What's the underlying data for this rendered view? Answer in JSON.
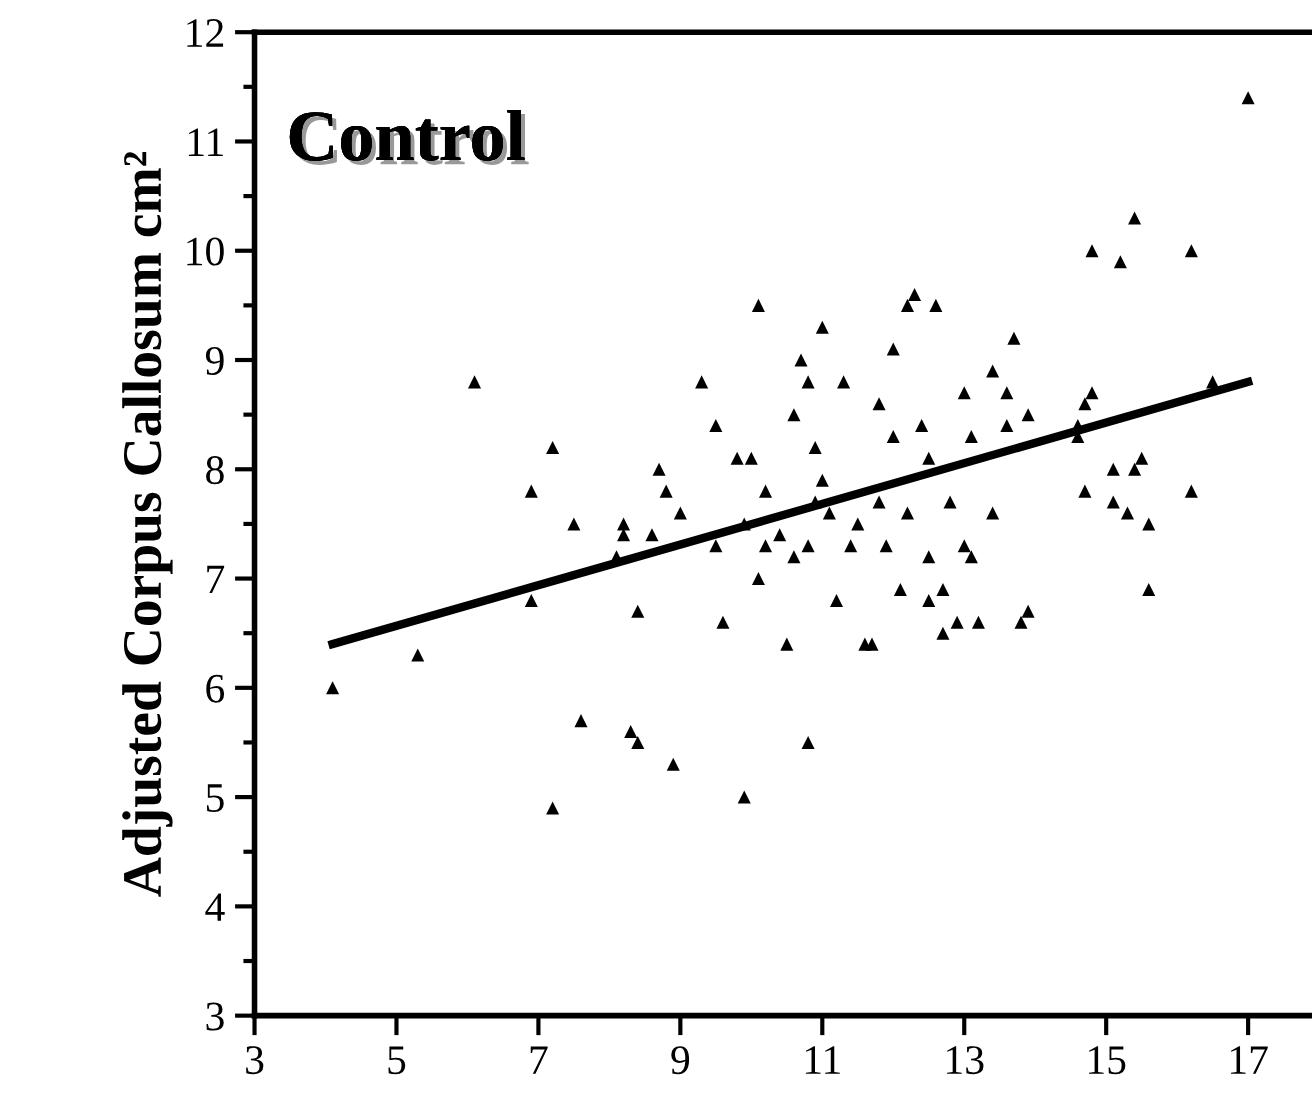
{
  "chart_data": {
    "type": "scatter",
    "ylabel": "Adjusted Corpus Callosum cm²",
    "annotations": [
      "Control"
    ],
    "xlim": [
      3,
      17.9
    ],
    "ylim": [
      3,
      12
    ],
    "xticks": [
      3,
      5,
      7,
      9,
      11,
      13,
      15,
      17
    ],
    "yticks": [
      3,
      4,
      5,
      6,
      7,
      8,
      9,
      10,
      11,
      12
    ],
    "grid": false,
    "legend": false,
    "series": [
      {
        "marker": "triangle",
        "color": "#000000",
        "x": [
          4.1,
          5.3,
          6.1,
          6.9,
          6.9,
          7.2,
          7.2,
          7.6,
          7.5,
          8.1,
          8.2,
          8.2,
          8.3,
          8.4,
          8.4,
          8.6,
          8.7,
          8.8,
          8.9,
          9.0,
          9.3,
          9.5,
          9.5,
          9.6,
          9.8,
          9.9,
          9.9,
          10.0,
          10.1,
          10.1,
          10.2,
          10.2,
          10.4,
          10.5,
          10.6,
          10.6,
          10.7,
          10.8,
          10.8,
          10.8,
          10.9,
          10.9,
          11.0,
          11.0,
          11.1,
          11.2,
          11.3,
          11.4,
          11.5,
          11.6,
          11.7,
          11.8,
          11.8,
          11.9,
          12.0,
          12.0,
          12.1,
          12.2,
          12.2,
          12.3,
          12.4,
          12.5,
          12.5,
          12.5,
          12.6,
          12.7,
          12.7,
          12.8,
          12.9,
          13.0,
          13.0,
          13.1,
          13.1,
          13.2,
          13.4,
          13.4,
          13.6,
          13.6,
          13.7,
          13.8,
          13.9,
          13.9,
          14.6,
          14.6,
          14.7,
          14.8,
          14.8,
          14.7,
          15.1,
          15.1,
          15.2,
          15.3,
          15.4,
          15.4,
          15.5,
          15.6,
          15.6,
          16.2,
          16.2,
          16.5,
          17.0
        ],
        "values": [
          6.0,
          6.3,
          8.8,
          7.8,
          6.8,
          8.2,
          4.9,
          5.7,
          7.5,
          7.2,
          7.4,
          7.5,
          5.6,
          5.5,
          6.7,
          7.4,
          8.0,
          7.8,
          5.3,
          7.6,
          8.8,
          8.4,
          7.3,
          6.6,
          8.1,
          7.5,
          5.0,
          8.1,
          7.0,
          9.5,
          7.3,
          7.8,
          7.4,
          6.4,
          8.5,
          7.2,
          9.0,
          7.3,
          8.8,
          5.5,
          8.2,
          7.7,
          9.3,
          7.9,
          7.6,
          6.8,
          8.8,
          7.3,
          7.5,
          6.4,
          6.4,
          8.6,
          7.7,
          7.3,
          9.1,
          8.3,
          6.9,
          7.6,
          9.5,
          9.6,
          8.4,
          8.1,
          7.2,
          6.8,
          9.5,
          6.5,
          6.9,
          7.7,
          6.6,
          8.7,
          7.3,
          8.3,
          7.2,
          6.6,
          7.6,
          8.9,
          8.4,
          8.7,
          9.2,
          6.6,
          6.7,
          8.5,
          8.3,
          8.4,
          8.6,
          8.7,
          10.0,
          7.8,
          7.7,
          8.0,
          9.9,
          7.6,
          8.0,
          10.3,
          8.1,
          7.5,
          6.9,
          10.0,
          7.8,
          8.8,
          11.4
        ]
      },
      {
        "type": "line",
        "color": "#000000",
        "x": [
          4.1,
          17.0
        ],
        "values": [
          6.4,
          8.8
        ]
      }
    ]
  }
}
